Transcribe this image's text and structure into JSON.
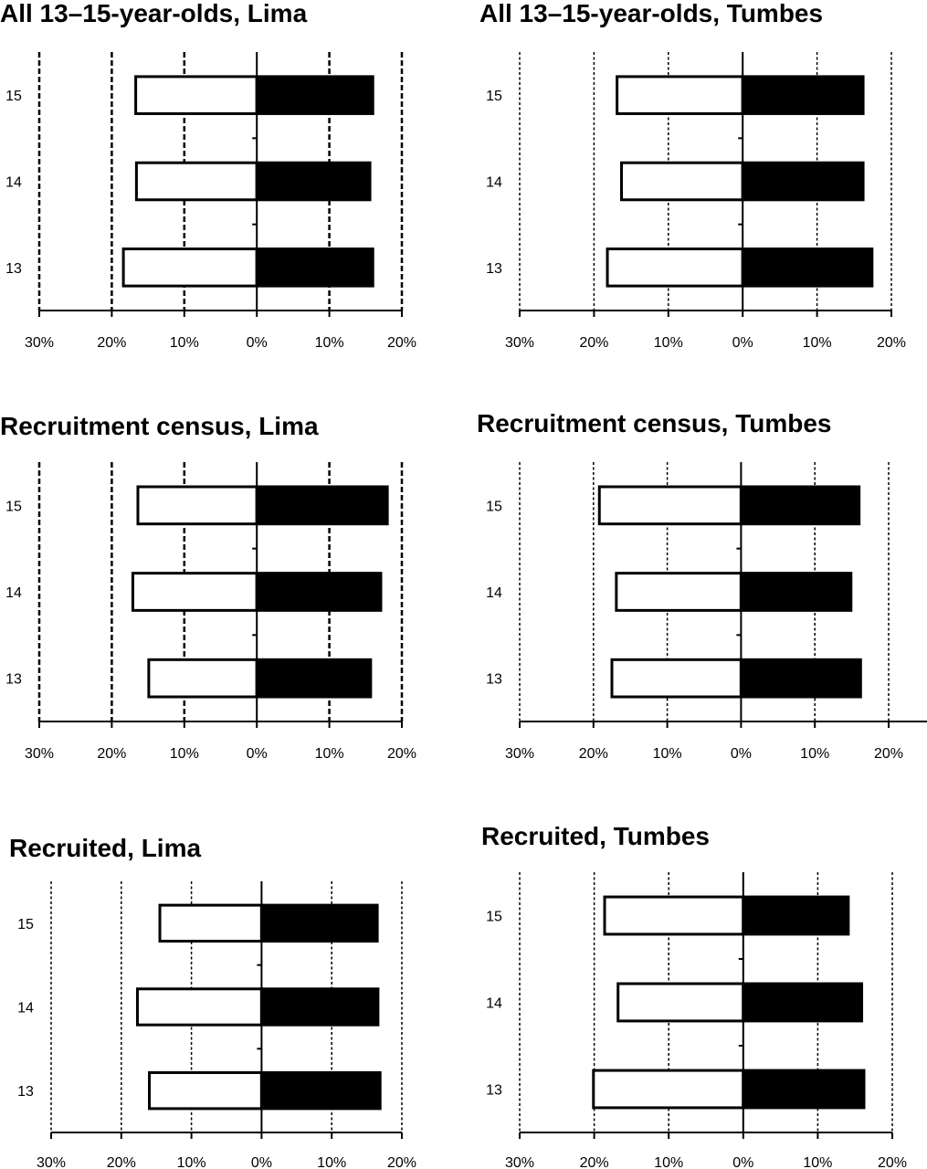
{
  "chart_data": [
    {
      "type": "bar",
      "orientation": "horizontal",
      "style": "population pyramid",
      "title": "All 13–15-year-olds, Lima",
      "categories": [
        "15",
        "14",
        "13"
      ],
      "xtick_labels": [
        "30%",
        "20%",
        "10%",
        "0%",
        "10%",
        "20%"
      ],
      "xlim": [
        -30,
        20
      ],
      "grid": true,
      "series": [
        {
          "fill": "#ffffff",
          "values": [
            -16.7,
            -16.6,
            -18.4
          ]
        },
        {
          "fill": "#000000",
          "values": [
            16.0,
            15.6,
            16.0
          ]
        }
      ]
    },
    {
      "type": "bar",
      "orientation": "horizontal",
      "style": "population pyramid",
      "title": "All 13–15-year-olds, Tumbes",
      "categories": [
        "15",
        "14",
        "13"
      ],
      "xtick_labels": [
        "30%",
        "20%",
        "10%",
        "0%",
        "10%",
        "20%"
      ],
      "xlim": [
        -30,
        20
      ],
      "grid": true,
      "series": [
        {
          "fill": "#ffffff",
          "values": [
            -16.9,
            -16.3,
            -18.2
          ]
        },
        {
          "fill": "#000000",
          "values": [
            16.2,
            16.2,
            17.4
          ]
        }
      ]
    },
    {
      "type": "bar",
      "orientation": "horizontal",
      "style": "population pyramid",
      "title": "Recruitment census, Lima",
      "categories": [
        "15",
        "14",
        "13"
      ],
      "xtick_labels": [
        "30%",
        "20%",
        "10%",
        "0%",
        "10%",
        "20%"
      ],
      "xlim": [
        -30,
        20
      ],
      "grid": true,
      "series": [
        {
          "fill": "#ffffff",
          "values": [
            -16.4,
            -17.1,
            -14.9
          ]
        },
        {
          "fill": "#000000",
          "values": [
            18.0,
            17.1,
            15.7
          ]
        }
      ]
    },
    {
      "type": "bar",
      "orientation": "horizontal",
      "style": "population pyramid",
      "title": "Recruitment census, Tumbes",
      "categories": [
        "15",
        "14",
        "13"
      ],
      "xtick_labels": [
        "30%",
        "20%",
        "10%",
        "0%",
        "10%",
        "20%"
      ],
      "xlim": [
        -30,
        20
      ],
      "grid": true,
      "series": [
        {
          "fill": "#ffffff",
          "values": [
            -19.2,
            -16.9,
            -17.5
          ]
        },
        {
          "fill": "#000000",
          "values": [
            16.0,
            14.9,
            16.2
          ]
        }
      ]
    },
    {
      "type": "bar",
      "orientation": "horizontal",
      "style": "population pyramid",
      "title": "Recruited, Lima",
      "categories": [
        "15",
        "14",
        "13"
      ],
      "xtick_labels": [
        "30%",
        "20%",
        "10%",
        "0%",
        "10%",
        "20%"
      ],
      "xlim": [
        -30,
        20
      ],
      "grid": true,
      "series": [
        {
          "fill": "#ffffff",
          "values": [
            -14.5,
            -17.7,
            -16.0
          ]
        },
        {
          "fill": "#000000",
          "values": [
            16.5,
            16.6,
            16.9
          ]
        }
      ]
    },
    {
      "type": "bar",
      "orientation": "horizontal",
      "style": "population pyramid",
      "title": "Recruited, Tumbes",
      "categories": [
        "15",
        "14",
        "13"
      ],
      "xtick_labels": [
        "30%",
        "20%",
        "10%",
        "0%",
        "10%",
        "20%"
      ],
      "xlim": [
        -30,
        20
      ],
      "grid": true,
      "series": [
        {
          "fill": "#ffffff",
          "values": [
            -18.6,
            -16.8,
            -20.1
          ]
        },
        {
          "fill": "#000000",
          "values": [
            14.1,
            15.9,
            16.2
          ]
        }
      ]
    }
  ]
}
